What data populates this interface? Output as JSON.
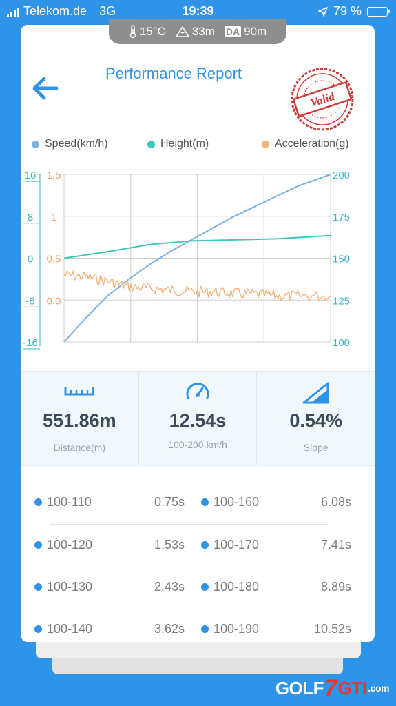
{
  "status_bar": {
    "carrier": "Telekom.de",
    "network": "3G",
    "time": "19:39",
    "battery": "79 %",
    "battery_level": 0.79,
    "colors": {
      "battery": "#ffd60a"
    }
  },
  "environment": {
    "temperature": "15°C",
    "altitude": "33m",
    "density_altitude_label": "DA",
    "density_altitude": "90m"
  },
  "header": {
    "title": "Performance Report",
    "back_icon": "arrow-left-icon",
    "stamp_text": "Valid"
  },
  "legend": {
    "speed": "Speed(km/h)",
    "height": "Height(m)",
    "acceleration": "Acceleration(g)",
    "colors": {
      "speed": "#7ab3e0",
      "height": "#3cc7bf",
      "acceleration": "#f7b27c"
    }
  },
  "chart_data": {
    "type": "line",
    "x_range": [
      0,
      12.54
    ],
    "axes": {
      "left_outer": {
        "ticks": [
          "16",
          "8",
          "0",
          "-8",
          "-16"
        ],
        "range": [
          -16,
          16
        ],
        "color": "#3bb4c8"
      },
      "left_inner": {
        "ticks": [
          "1.5",
          "1",
          "0.5",
          "0.0"
        ],
        "range": [
          -0.5,
          1.5
        ],
        "color": "#f2a26a"
      },
      "right": {
        "ticks": [
          "200",
          "175",
          "150",
          "125",
          "100"
        ],
        "range": [
          100,
          200
        ],
        "color": "#3bb4c8"
      }
    },
    "grid": true,
    "legend_placement": "top",
    "series": [
      {
        "name": "Speed(km/h)",
        "axis": "right",
        "points": [
          [
            0,
            100
          ],
          [
            1,
            114
          ],
          [
            2,
            127
          ],
          [
            3,
            137
          ],
          [
            4,
            146
          ],
          [
            5,
            154
          ],
          [
            6,
            161
          ],
          [
            7,
            168
          ],
          [
            8,
            175
          ],
          [
            9,
            181
          ],
          [
            10,
            187
          ],
          [
            11,
            193
          ],
          [
            12.54,
            200
          ]
        ]
      },
      {
        "name": "Height(m)",
        "axis": "left_outer",
        "points": [
          [
            0,
            0
          ],
          [
            2,
            1.2
          ],
          [
            4,
            2.6
          ],
          [
            6,
            3.3
          ],
          [
            8,
            3.5
          ],
          [
            10,
            3.7
          ],
          [
            12.54,
            4.3
          ]
        ]
      },
      {
        "name": "Acceleration(g)",
        "axis": "left_inner",
        "points": [
          [
            0,
            0.3
          ],
          [
            1,
            0.28
          ],
          [
            2,
            0.23
          ],
          [
            3,
            0.16
          ],
          [
            4,
            0.14
          ],
          [
            5,
            0.12
          ],
          [
            6,
            0.1
          ],
          [
            7,
            0.1
          ],
          [
            8,
            0.08
          ],
          [
            9,
            0.07
          ],
          [
            10,
            0.05
          ],
          [
            11,
            0.05
          ],
          [
            12.54,
            0.05
          ]
        ]
      }
    ]
  },
  "stats": [
    {
      "value": "551.86m",
      "label": "Distance(m)",
      "icon": "ruler-icon"
    },
    {
      "value": "12.54s",
      "label": "100-200 km/h",
      "icon": "speedometer-icon"
    },
    {
      "value": "0.54%",
      "label": "Slope",
      "icon": "slope-icon"
    }
  ],
  "intervals": [
    {
      "left_label": "100-110",
      "left_time": "0.75s",
      "right_label": "100-160",
      "right_time": "6.08s"
    },
    {
      "left_label": "100-120",
      "left_time": "1.53s",
      "right_label": "100-170",
      "right_time": "7.41s"
    },
    {
      "left_label": "100-130",
      "left_time": "2.43s",
      "right_label": "100-180",
      "right_time": "8.89s"
    },
    {
      "left_label": "100-140",
      "left_time": "3.62s",
      "right_label": "100-190",
      "right_time": "10.52s"
    }
  ],
  "watermark": {
    "part1": "GOLF",
    "part2": "7",
    "part3": "GTI",
    "part4": ".com"
  }
}
